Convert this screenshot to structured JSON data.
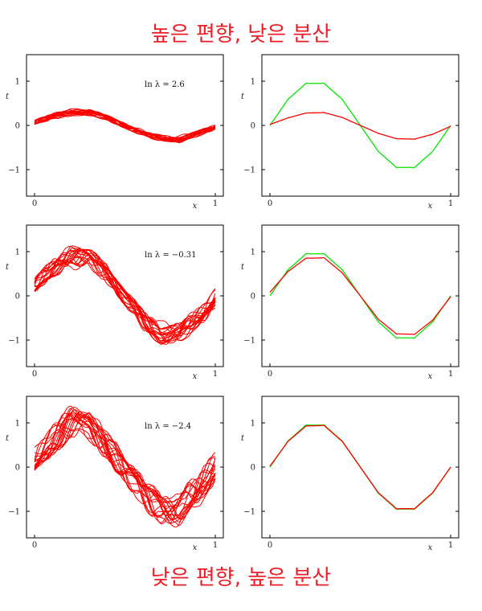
{
  "captions": {
    "top": "높은 편향, 낮은 분산",
    "bottom": "낮은 편향, 높은 분산"
  },
  "colors": {
    "fits": "#ff0000",
    "truth": "#00e600"
  },
  "chart_data": [
    {
      "type": "line",
      "row": 0,
      "col": 0,
      "annotation": "ln λ = 2.6",
      "xlabel": "x",
      "ylabel": "t",
      "xlim": [
        0,
        1
      ],
      "ylim": [
        -1.6,
        1.6
      ],
      "xticks": [
        "0",
        "1"
      ],
      "yticks": [
        "1",
        "0",
        "−1"
      ],
      "ytick_values": [
        1,
        0,
        -1
      ],
      "x": [
        0,
        0.1,
        0.2,
        0.3,
        0.4,
        0.5,
        0.6,
        0.7,
        0.8,
        0.9,
        1
      ],
      "series": [
        {
          "values": [
            0.06,
            0.2,
            0.3,
            0.31,
            0.18,
            0,
            -0.18,
            -0.3,
            -0.31,
            -0.2,
            -0.04
          ],
          "num_curves": 20
        }
      ]
    },
    {
      "type": "line",
      "row": 0,
      "col": 1,
      "xlabel": "x",
      "ylabel": "t",
      "xlim": [
        0,
        1
      ],
      "ylim": [
        -1.6,
        1.6
      ],
      "xticks": [
        "0",
        "1"
      ],
      "yticks": [
        "1",
        "0",
        "−1"
      ],
      "ytick_values": [
        1,
        0,
        -1
      ],
      "x": [
        0,
        0.1,
        0.2,
        0.3,
        0.4,
        0.5,
        0.6,
        0.7,
        0.8,
        0.9,
        1
      ],
      "series": [
        {
          "values": [
            0,
            0.59,
            0.95,
            0.95,
            0.59,
            0,
            -0.59,
            -0.95,
            -0.95,
            -0.59,
            0
          ],
          "color": "truth"
        },
        {
          "values": [
            0.02,
            0.17,
            0.28,
            0.29,
            0.18,
            0,
            -0.18,
            -0.3,
            -0.31,
            -0.2,
            -0.02
          ],
          "color": "fits"
        }
      ]
    },
    {
      "type": "line",
      "row": 1,
      "col": 0,
      "annotation": "ln λ = −0.31",
      "xlabel": "x",
      "ylabel": "t",
      "xlim": [
        0,
        1
      ],
      "ylim": [
        -1.6,
        1.6
      ],
      "xticks": [
        "0",
        "1"
      ],
      "yticks": [
        "1",
        "0",
        "−1"
      ],
      "ytick_values": [
        1,
        0,
        -1
      ],
      "x": [
        0,
        0.1,
        0.2,
        0.3,
        0.4,
        0.5,
        0.6,
        0.7,
        0.8,
        0.9,
        1
      ],
      "series": [
        {
          "values": [
            0.2,
            0.62,
            0.9,
            0.88,
            0.52,
            0,
            -0.52,
            -0.86,
            -0.86,
            -0.52,
            -0.05
          ],
          "num_curves": 20
        }
      ]
    },
    {
      "type": "line",
      "row": 1,
      "col": 1,
      "xlabel": "x",
      "ylabel": "t",
      "xlim": [
        0,
        1
      ],
      "ylim": [
        -1.6,
        1.6
      ],
      "xticks": [
        "0",
        "1"
      ],
      "yticks": [
        "1",
        "0",
        "−1"
      ],
      "ytick_values": [
        1,
        0,
        -1
      ],
      "x": [
        0,
        0.1,
        0.2,
        0.3,
        0.4,
        0.5,
        0.6,
        0.7,
        0.8,
        0.9,
        1
      ],
      "series": [
        {
          "values": [
            0,
            0.59,
            0.95,
            0.95,
            0.59,
            0,
            -0.59,
            -0.95,
            -0.95,
            -0.59,
            0
          ],
          "color": "truth"
        },
        {
          "values": [
            0.08,
            0.55,
            0.85,
            0.86,
            0.52,
            0,
            -0.53,
            -0.86,
            -0.87,
            -0.55,
            -0.02
          ],
          "color": "fits"
        }
      ]
    },
    {
      "type": "line",
      "row": 2,
      "col": 0,
      "annotation": "ln λ = −2.4",
      "xlabel": "x",
      "ylabel": "t",
      "xlim": [
        0,
        1
      ],
      "ylim": [
        -1.6,
        1.6
      ],
      "xticks": [
        "0",
        "1"
      ],
      "yticks": [
        "1",
        "0",
        "−1"
      ],
      "ytick_values": [
        1,
        0,
        -1
      ],
      "x": [
        0,
        0.1,
        0.2,
        0.3,
        0.4,
        0.5,
        0.6,
        0.7,
        0.8,
        0.9,
        1
      ],
      "series": [
        {
          "values": [
            0.1,
            0.6,
            0.95,
            0.95,
            0.55,
            0,
            -0.55,
            -0.93,
            -0.93,
            -0.55,
            0
          ],
          "num_curves": 20
        }
      ]
    },
    {
      "type": "line",
      "row": 2,
      "col": 1,
      "xlabel": "x",
      "ylabel": "t",
      "xlim": [
        0,
        1
      ],
      "ylim": [
        -1.6,
        1.6
      ],
      "xticks": [
        "0",
        "1"
      ],
      "yticks": [
        "1",
        "0",
        "−1"
      ],
      "ytick_values": [
        1,
        0,
        -1
      ],
      "x": [
        0,
        0.1,
        0.2,
        0.3,
        0.4,
        0.5,
        0.6,
        0.7,
        0.8,
        0.9,
        1
      ],
      "series": [
        {
          "values": [
            0,
            0.59,
            0.95,
            0.95,
            0.59,
            0,
            -0.59,
            -0.95,
            -0.95,
            -0.59,
            0
          ],
          "color": "truth"
        },
        {
          "values": [
            0.02,
            0.58,
            0.93,
            0.94,
            0.58,
            0,
            -0.58,
            -0.94,
            -0.94,
            -0.58,
            0
          ],
          "color": "fits"
        }
      ]
    }
  ]
}
